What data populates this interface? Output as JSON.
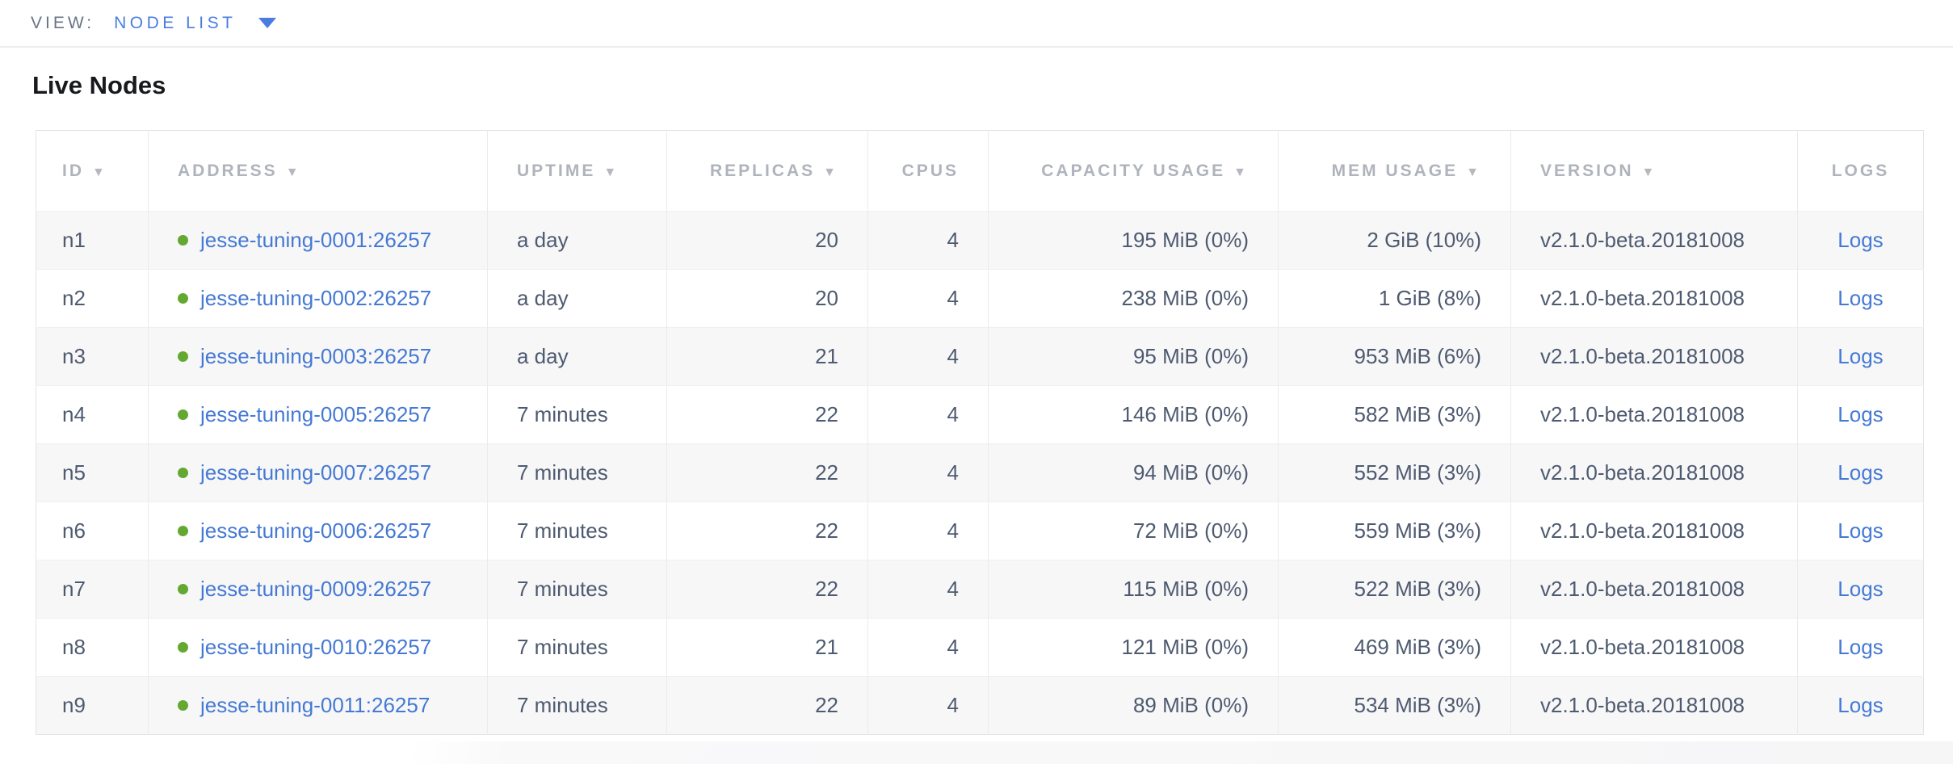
{
  "view_bar": {
    "label": "VIEW:",
    "selected": "NODE LIST",
    "caret_icon": "triangle-down"
  },
  "page_title": "Live Nodes",
  "colors": {
    "accent_blue": "#4a7de2",
    "link_blue": "#4579d4",
    "live_green": "#64a831",
    "header_gray": "#afb3bb",
    "cell_text": "#4e5a70",
    "row_stripe": "#f7f7f8"
  },
  "table": {
    "sort_indicator": "▼",
    "columns": [
      {
        "key": "id",
        "label": "ID",
        "sortable": true,
        "align": "left"
      },
      {
        "key": "address",
        "label": "ADDRESS",
        "sortable": true,
        "align": "left"
      },
      {
        "key": "uptime",
        "label": "UPTIME",
        "sortable": true,
        "align": "left"
      },
      {
        "key": "replicas",
        "label": "REPLICAS",
        "sortable": true,
        "align": "right"
      },
      {
        "key": "cpus",
        "label": "CPUS",
        "sortable": false,
        "align": "right"
      },
      {
        "key": "capacity",
        "label": "CAPACITY USAGE",
        "sortable": true,
        "align": "right"
      },
      {
        "key": "mem",
        "label": "MEM USAGE",
        "sortable": true,
        "align": "right"
      },
      {
        "key": "version",
        "label": "VERSION",
        "sortable": true,
        "align": "left"
      },
      {
        "key": "logs",
        "label": "LOGS",
        "sortable": false,
        "align": "center"
      }
    ],
    "rows": [
      {
        "id": "n1",
        "status": "live",
        "address": "jesse-tuning-0001:26257",
        "uptime": "a day",
        "replicas": "20",
        "cpus": "4",
        "capacity": "195 MiB (0%)",
        "mem": "2 GiB (10%)",
        "version": "v2.1.0-beta.20181008",
        "logs": "Logs"
      },
      {
        "id": "n2",
        "status": "live",
        "address": "jesse-tuning-0002:26257",
        "uptime": "a day",
        "replicas": "20",
        "cpus": "4",
        "capacity": "238 MiB (0%)",
        "mem": "1 GiB (8%)",
        "version": "v2.1.0-beta.20181008",
        "logs": "Logs"
      },
      {
        "id": "n3",
        "status": "live",
        "address": "jesse-tuning-0003:26257",
        "uptime": "a day",
        "replicas": "21",
        "cpus": "4",
        "capacity": "95 MiB (0%)",
        "mem": "953 MiB (6%)",
        "version": "v2.1.0-beta.20181008",
        "logs": "Logs"
      },
      {
        "id": "n4",
        "status": "live",
        "address": "jesse-tuning-0005:26257",
        "uptime": "7 minutes",
        "replicas": "22",
        "cpus": "4",
        "capacity": "146 MiB (0%)",
        "mem": "582 MiB (3%)",
        "version": "v2.1.0-beta.20181008",
        "logs": "Logs"
      },
      {
        "id": "n5",
        "status": "live",
        "address": "jesse-tuning-0007:26257",
        "uptime": "7 minutes",
        "replicas": "22",
        "cpus": "4",
        "capacity": "94 MiB (0%)",
        "mem": "552 MiB (3%)",
        "version": "v2.1.0-beta.20181008",
        "logs": "Logs"
      },
      {
        "id": "n6",
        "status": "live",
        "address": "jesse-tuning-0006:26257",
        "uptime": "7 minutes",
        "replicas": "22",
        "cpus": "4",
        "capacity": "72 MiB (0%)",
        "mem": "559 MiB (3%)",
        "version": "v2.1.0-beta.20181008",
        "logs": "Logs"
      },
      {
        "id": "n7",
        "status": "live",
        "address": "jesse-tuning-0009:26257",
        "uptime": "7 minutes",
        "replicas": "22",
        "cpus": "4",
        "capacity": "115 MiB (0%)",
        "mem": "522 MiB (3%)",
        "version": "v2.1.0-beta.20181008",
        "logs": "Logs"
      },
      {
        "id": "n8",
        "status": "live",
        "address": "jesse-tuning-0010:26257",
        "uptime": "7 minutes",
        "replicas": "21",
        "cpus": "4",
        "capacity": "121 MiB (0%)",
        "mem": "469 MiB (3%)",
        "version": "v2.1.0-beta.20181008",
        "logs": "Logs"
      },
      {
        "id": "n9",
        "status": "live",
        "address": "jesse-tuning-0011:26257",
        "uptime": "7 minutes",
        "replicas": "22",
        "cpus": "4",
        "capacity": "89 MiB (0%)",
        "mem": "534 MiB (3%)",
        "version": "v2.1.0-beta.20181008",
        "logs": "Logs"
      }
    ]
  }
}
